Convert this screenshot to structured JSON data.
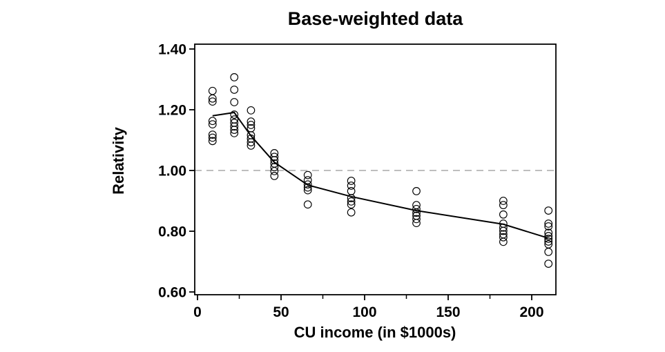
{
  "chart_data": {
    "type": "scatter",
    "title": "Base-weighted data",
    "xlabel": "CU income (in $1000s)",
    "ylabel": "Relativity",
    "xlim": [
      -2,
      214
    ],
    "ylim": [
      0.59,
      1.42
    ],
    "grid": "off",
    "legend": "none",
    "x_ticks_major": [
      {
        "value": 0,
        "label": "0"
      },
      {
        "value": 50,
        "label": "50"
      },
      {
        "value": 100,
        "label": "100"
      },
      {
        "value": 150,
        "label": "150"
      },
      {
        "value": 200,
        "label": "200"
      }
    ],
    "x_ticks_minor": [
      25,
      75,
      125,
      175
    ],
    "y_ticks": [
      {
        "value": 1.4,
        "label": "1.40"
      },
      {
        "value": 1.2,
        "label": "1.20"
      },
      {
        "value": 1.0,
        "label": "1.00"
      },
      {
        "value": 0.8,
        "label": "0.80"
      },
      {
        "value": 0.6,
        "label": "0.60"
      }
    ],
    "reference_line": {
      "y": 1.0,
      "style": "dashed",
      "color": "#a8a8a8"
    },
    "marker_style": {
      "shape": "open-circle",
      "stroke": "#000000",
      "fill": "none",
      "radius_px": 5.3
    },
    "line_color": "#000000",
    "scatter_clusters": [
      {
        "x": 9,
        "y": [
          1.262,
          1.237,
          1.227,
          1.163,
          1.152,
          1.118,
          1.108,
          1.097
        ]
      },
      {
        "x": 22,
        "y": [
          1.307,
          1.266,
          1.225,
          1.184,
          1.168,
          1.157,
          1.145,
          1.134,
          1.123
        ]
      },
      {
        "x": 32,
        "y": [
          1.198,
          1.161,
          1.15,
          1.139,
          1.116,
          1.105,
          1.093,
          1.082
        ]
      },
      {
        "x": 46,
        "y": [
          1.057,
          1.045,
          1.034,
          1.023,
          1.011,
          0.998,
          0.982
        ]
      },
      {
        "x": 66,
        "y": [
          0.985,
          0.968,
          0.954,
          0.944,
          0.935,
          0.888
        ]
      },
      {
        "x": 92,
        "y": [
          0.966,
          0.95,
          0.932,
          0.909,
          0.898,
          0.888,
          0.862
        ]
      },
      {
        "x": 131,
        "y": [
          0.932,
          0.886,
          0.873,
          0.861,
          0.851,
          0.84,
          0.827
        ]
      },
      {
        "x": 183,
        "y": [
          0.9,
          0.886,
          0.855,
          0.825,
          0.812,
          0.801,
          0.79,
          0.78,
          0.765
        ]
      },
      {
        "x": 210,
        "y": [
          0.868,
          0.825,
          0.816,
          0.795,
          0.784,
          0.775,
          0.766,
          0.757,
          0.732,
          0.693
        ]
      }
    ],
    "trend_line": [
      [
        9,
        1.18
      ],
      [
        22,
        1.191
      ],
      [
        32,
        1.114
      ],
      [
        46,
        1.027
      ],
      [
        66,
        0.952
      ],
      [
        92,
        0.914
      ],
      [
        131,
        0.868
      ],
      [
        183,
        0.823
      ],
      [
        210,
        0.777
      ]
    ]
  }
}
